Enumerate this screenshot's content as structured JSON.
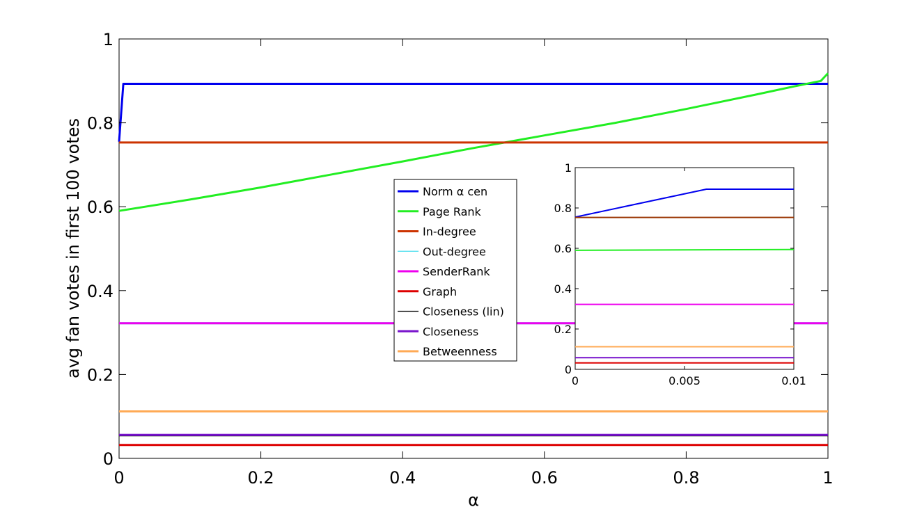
{
  "chart_data": [
    {
      "type": "line",
      "xlabel": "α",
      "ylabel": "avg fan votes in first 100 votes",
      "xlim": [
        0,
        1
      ],
      "ylim": [
        0,
        1
      ],
      "xticks": [
        0,
        0.2,
        0.4,
        0.6,
        0.8,
        1
      ],
      "xtick_labels": [
        "0",
        "0.2",
        "0.4",
        "0.6",
        "0.8",
        "1"
      ],
      "yticks": [
        0,
        0.2,
        0.4,
        0.6,
        0.8,
        1
      ],
      "ytick_labels": [
        "0",
        "0.2",
        "0.4",
        "0.6",
        "0.8",
        "1"
      ],
      "grid": false,
      "legend_placement": "center",
      "series": [
        {
          "name": "Norm α cen",
          "color": "#0000ee",
          "x": [
            0,
            0.006,
            1
          ],
          "y": [
            0.755,
            0.893,
            0.893
          ]
        },
        {
          "name": "Page Rank",
          "color": "#22ee22",
          "x": [
            0,
            0.1,
            0.2,
            0.3,
            0.4,
            0.5,
            0.6,
            0.7,
            0.8,
            0.9,
            0.95,
            0.99,
            1
          ],
          "y": [
            0.59,
            0.617,
            0.646,
            0.677,
            0.708,
            0.74,
            0.77,
            0.8,
            0.833,
            0.868,
            0.886,
            0.9,
            0.918
          ]
        },
        {
          "name": "In-degree",
          "color": "#cc3300",
          "x": [
            0,
            1
          ],
          "y": [
            0.753,
            0.753
          ]
        },
        {
          "name": "Out-degree",
          "color": "#44ddee",
          "x": [
            0,
            1
          ],
          "y": [
            0.322,
            0.322
          ]
        },
        {
          "name": "SenderRank",
          "color": "#ee00ee",
          "x": [
            0,
            1
          ],
          "y": [
            0.322,
            0.322
          ]
        },
        {
          "name": "Graph",
          "color": "#dd0000",
          "x": [
            0,
            1
          ],
          "y": [
            0.032,
            0.032
          ]
        },
        {
          "name": "Closeness (lin)",
          "color": "#000000",
          "x": [
            0,
            1
          ],
          "y": [
            0.055,
            0.055
          ]
        },
        {
          "name": "Closeness",
          "color": "#7711cc",
          "x": [
            0,
            1
          ],
          "y": [
            0.056,
            0.056
          ]
        },
        {
          "name": "Betweenness",
          "color": "#ffaa55",
          "x": [
            0,
            1
          ],
          "y": [
            0.112,
            0.112
          ]
        }
      ]
    },
    {
      "type": "line",
      "xlim": [
        0,
        0.01
      ],
      "ylim": [
        0,
        1
      ],
      "xticks": [
        0,
        0.005,
        0.01
      ],
      "xtick_labels": [
        "0",
        "0.005",
        "0.01"
      ],
      "yticks": [
        0,
        0.2,
        0.4,
        0.6,
        0.8,
        1
      ],
      "ytick_labels": [
        "0",
        "0.2",
        "0.4",
        "0.6",
        "0.8",
        "1"
      ],
      "grid": false,
      "series": [
        {
          "name": "Norm α cen",
          "color": "#0000ee",
          "x": [
            0,
            0.006,
            0.01
          ],
          "y": [
            0.755,
            0.893,
            0.893
          ]
        },
        {
          "name": "Page Rank",
          "color": "#22ee22",
          "x": [
            0,
            0.01
          ],
          "y": [
            0.59,
            0.594
          ]
        },
        {
          "name": "In-degree",
          "color": "#993300",
          "x": [
            0,
            0.01
          ],
          "y": [
            0.753,
            0.753
          ]
        },
        {
          "name": "SenderRank",
          "color": "#ee00ee",
          "x": [
            0,
            0.01
          ],
          "y": [
            0.322,
            0.322
          ]
        },
        {
          "name": "Betweenness",
          "color": "#ffaa55",
          "x": [
            0,
            0.01
          ],
          "y": [
            0.112,
            0.112
          ]
        },
        {
          "name": "Closeness",
          "color": "#7711cc",
          "x": [
            0,
            0.01
          ],
          "y": [
            0.058,
            0.058
          ]
        },
        {
          "name": "Graph",
          "color": "#dd0000",
          "x": [
            0,
            0.01
          ],
          "y": [
            0.032,
            0.032
          ]
        }
      ]
    }
  ]
}
